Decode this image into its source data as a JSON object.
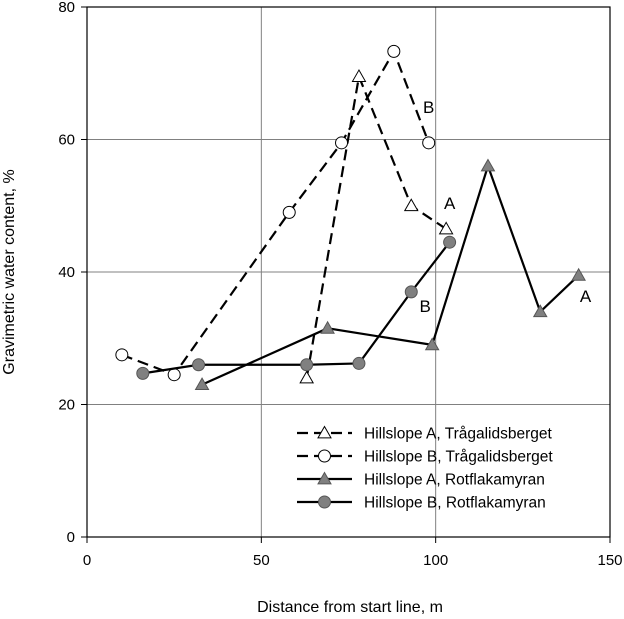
{
  "chart_data": {
    "type": "line",
    "title": "",
    "xlabel": "Distance from start line, m",
    "ylabel": "Gravimetric water content, %",
    "xlim": [
      0,
      150
    ],
    "ylim": [
      0,
      80
    ],
    "xticks": [
      0,
      50,
      100,
      150
    ],
    "yticks": [
      0,
      20,
      40,
      60,
      80
    ],
    "grid": true,
    "legend_position": "bottom-right",
    "series": [
      {
        "name": "Hillslope A, Trågalidsberget",
        "line": "dashed",
        "marker": "triangle-open",
        "x": [
          63,
          78,
          93,
          103
        ],
        "y": [
          24,
          69.5,
          50,
          46.5
        ]
      },
      {
        "name": "Hillslope B, Trågalidsberget",
        "line": "dashed",
        "marker": "circle-open",
        "x": [
          10,
          25,
          58,
          73,
          88,
          98
        ],
        "y": [
          27.5,
          24.5,
          49,
          59.5,
          73.3,
          59.5
        ]
      },
      {
        "name": "Hillslope A, Rotflakamyran",
        "line": "solid",
        "marker": "triangle-filled",
        "x": [
          33,
          69,
          99,
          115,
          130,
          141
        ],
        "y": [
          23,
          31.5,
          29,
          56,
          34,
          39.5
        ]
      },
      {
        "name": "Hillslope B, Rotflakamyran",
        "line": "solid",
        "marker": "circle-filled",
        "x": [
          16,
          32,
          63,
          78,
          93,
          104
        ],
        "y": [
          24.7,
          26,
          26,
          26.2,
          37,
          44.5
        ]
      }
    ],
    "annotations": [
      {
        "text": "B",
        "x": 98,
        "y": 64
      },
      {
        "text": "A",
        "x": 104,
        "y": 49.5
      },
      {
        "text": "B",
        "x": 97,
        "y": 34
      },
      {
        "text": "A",
        "x": 143,
        "y": 35.5
      }
    ]
  }
}
